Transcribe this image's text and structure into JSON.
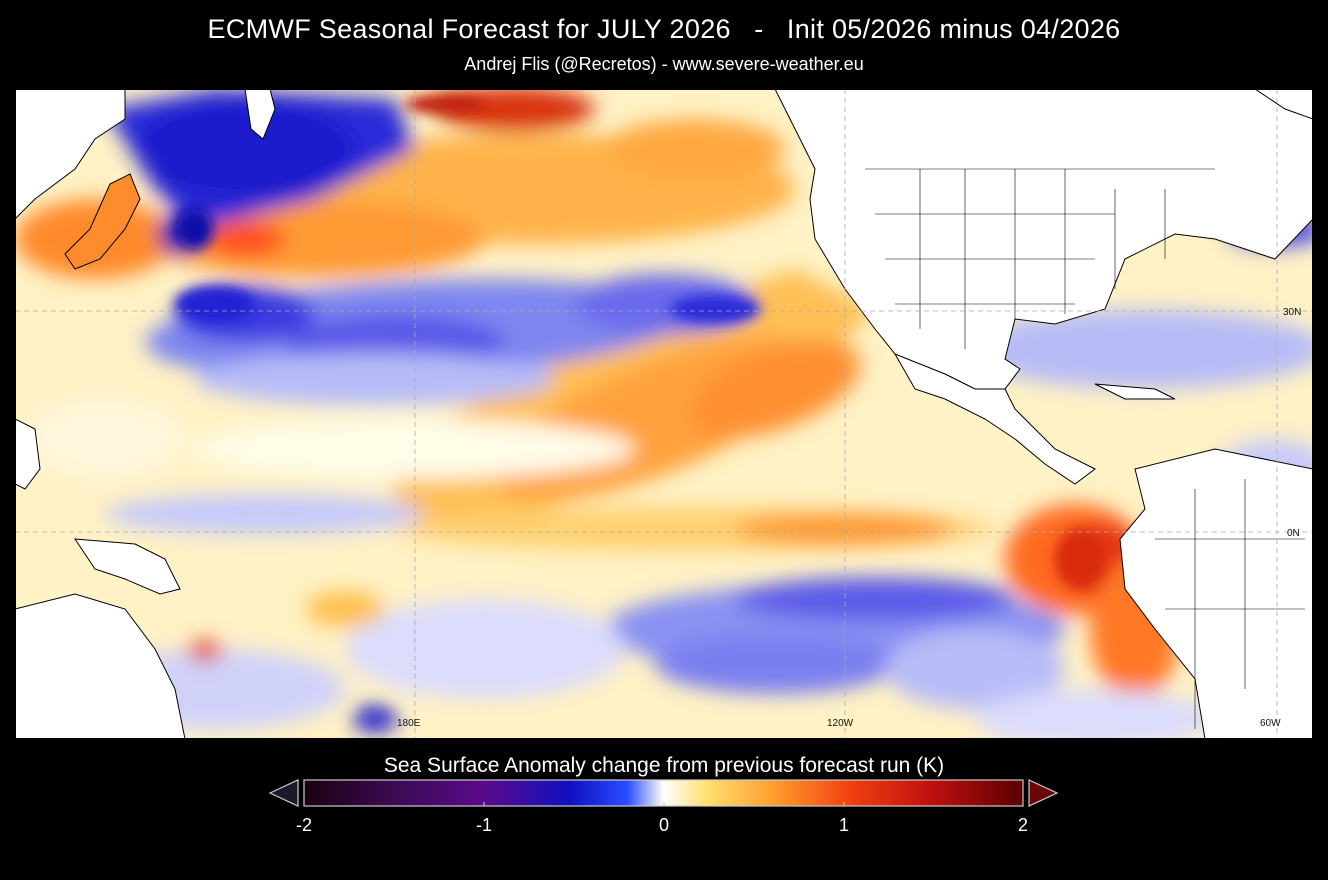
{
  "header": {
    "title": "ECMWF Seasonal Forecast for JULY 2026   -   Init 05/2026 minus 04/2026",
    "credit": "Andrej Flis (@Recretos) - www.severe-weather.eu"
  },
  "map": {
    "variable": "Sea Surface Anomaly change from previous forecast run (K)",
    "region": "Pacific Ocean",
    "gridlines": "dashed",
    "lat_labels": [
      "30N",
      "0N"
    ],
    "lon_labels": [
      "180E",
      "120W",
      "60W"
    ]
  },
  "colorbar": {
    "title": "Sea Surface Anomaly change from previous forecast run (K)",
    "ticks": [
      "-2",
      "-1",
      "0",
      "1",
      "2"
    ],
    "min": -2,
    "max": 2,
    "colors": [
      "#1a0010",
      "#5a0a8a",
      "#1010c0",
      "#2a4dff",
      "#ffffff",
      "#ffe070",
      "#ffa030",
      "#e01010",
      "#5a0000"
    ],
    "extends": [
      "min",
      "max"
    ]
  }
}
